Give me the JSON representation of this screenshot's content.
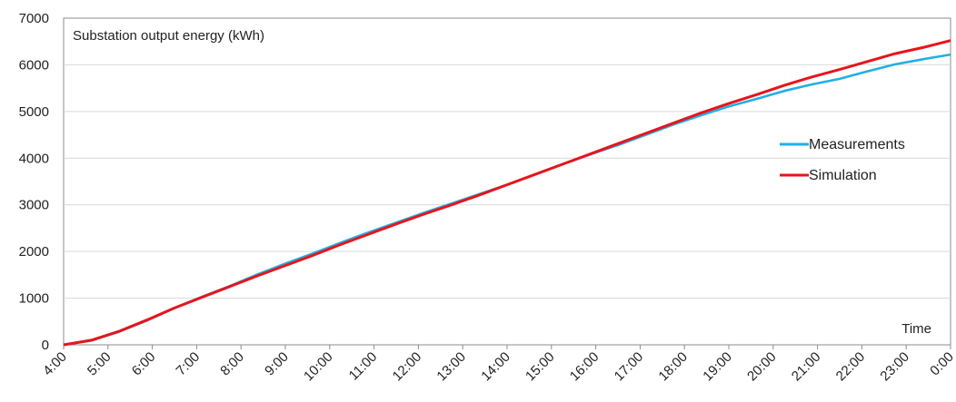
{
  "chart_data": {
    "type": "line",
    "title": "Substation output energy (kWh)",
    "xlabel": "Time",
    "ylabel": "",
    "ylim": [
      0,
      7000
    ],
    "yticks": [
      0,
      1000,
      2000,
      3000,
      4000,
      5000,
      6000,
      7000
    ],
    "xticks": [
      "4:00",
      "5:00",
      "6:00",
      "7:00",
      "8:00",
      "9:00",
      "10:00",
      "11:00",
      "12:00",
      "13:00",
      "14:00",
      "15:00",
      "16:00",
      "17:00",
      "18:00",
      "19:00",
      "20:00",
      "21:00",
      "22:00",
      "23:00",
      "0:00"
    ],
    "x_hours": [
      4,
      4.5,
      5,
      5.5,
      6,
      6.5,
      7,
      7.5,
      8,
      8.5,
      9,
      9.5,
      10,
      10.5,
      11,
      11.5,
      12,
      12.5,
      13,
      13.5,
      14,
      14.5,
      15,
      15.5,
      16,
      16.5,
      17,
      17.5,
      18,
      18.5,
      19,
      19.5,
      20,
      20.5,
      21,
      21.5,
      22,
      22.5,
      23,
      23.5,
      24
    ],
    "grid": true,
    "legend": "right",
    "series": [
      {
        "name": "Measurements",
        "color": "#1fb0e6",
        "values": [
          0,
          90,
          280,
          520,
          790,
          1030,
          1260,
          1510,
          1740,
          1960,
          2190,
          2410,
          2620,
          2830,
          3030,
          3230,
          3430,
          3650,
          3870,
          4080,
          4280,
          4500,
          4720,
          4920,
          5110,
          5270,
          5440,
          5580,
          5700,
          5860,
          6010,
          6120,
          6220
        ]
      },
      {
        "name": "Simulation",
        "color": "#e8141b",
        "values": [
          0,
          100,
          290,
          530,
          790,
          1020,
          1250,
          1480,
          1700,
          1920,
          2150,
          2370,
          2590,
          2800,
          3000,
          3210,
          3430,
          3650,
          3870,
          4090,
          4310,
          4530,
          4750,
          4970,
          5170,
          5360,
          5560,
          5740,
          5900,
          6070,
          6240,
          6370,
          6520
        ]
      }
    ]
  }
}
